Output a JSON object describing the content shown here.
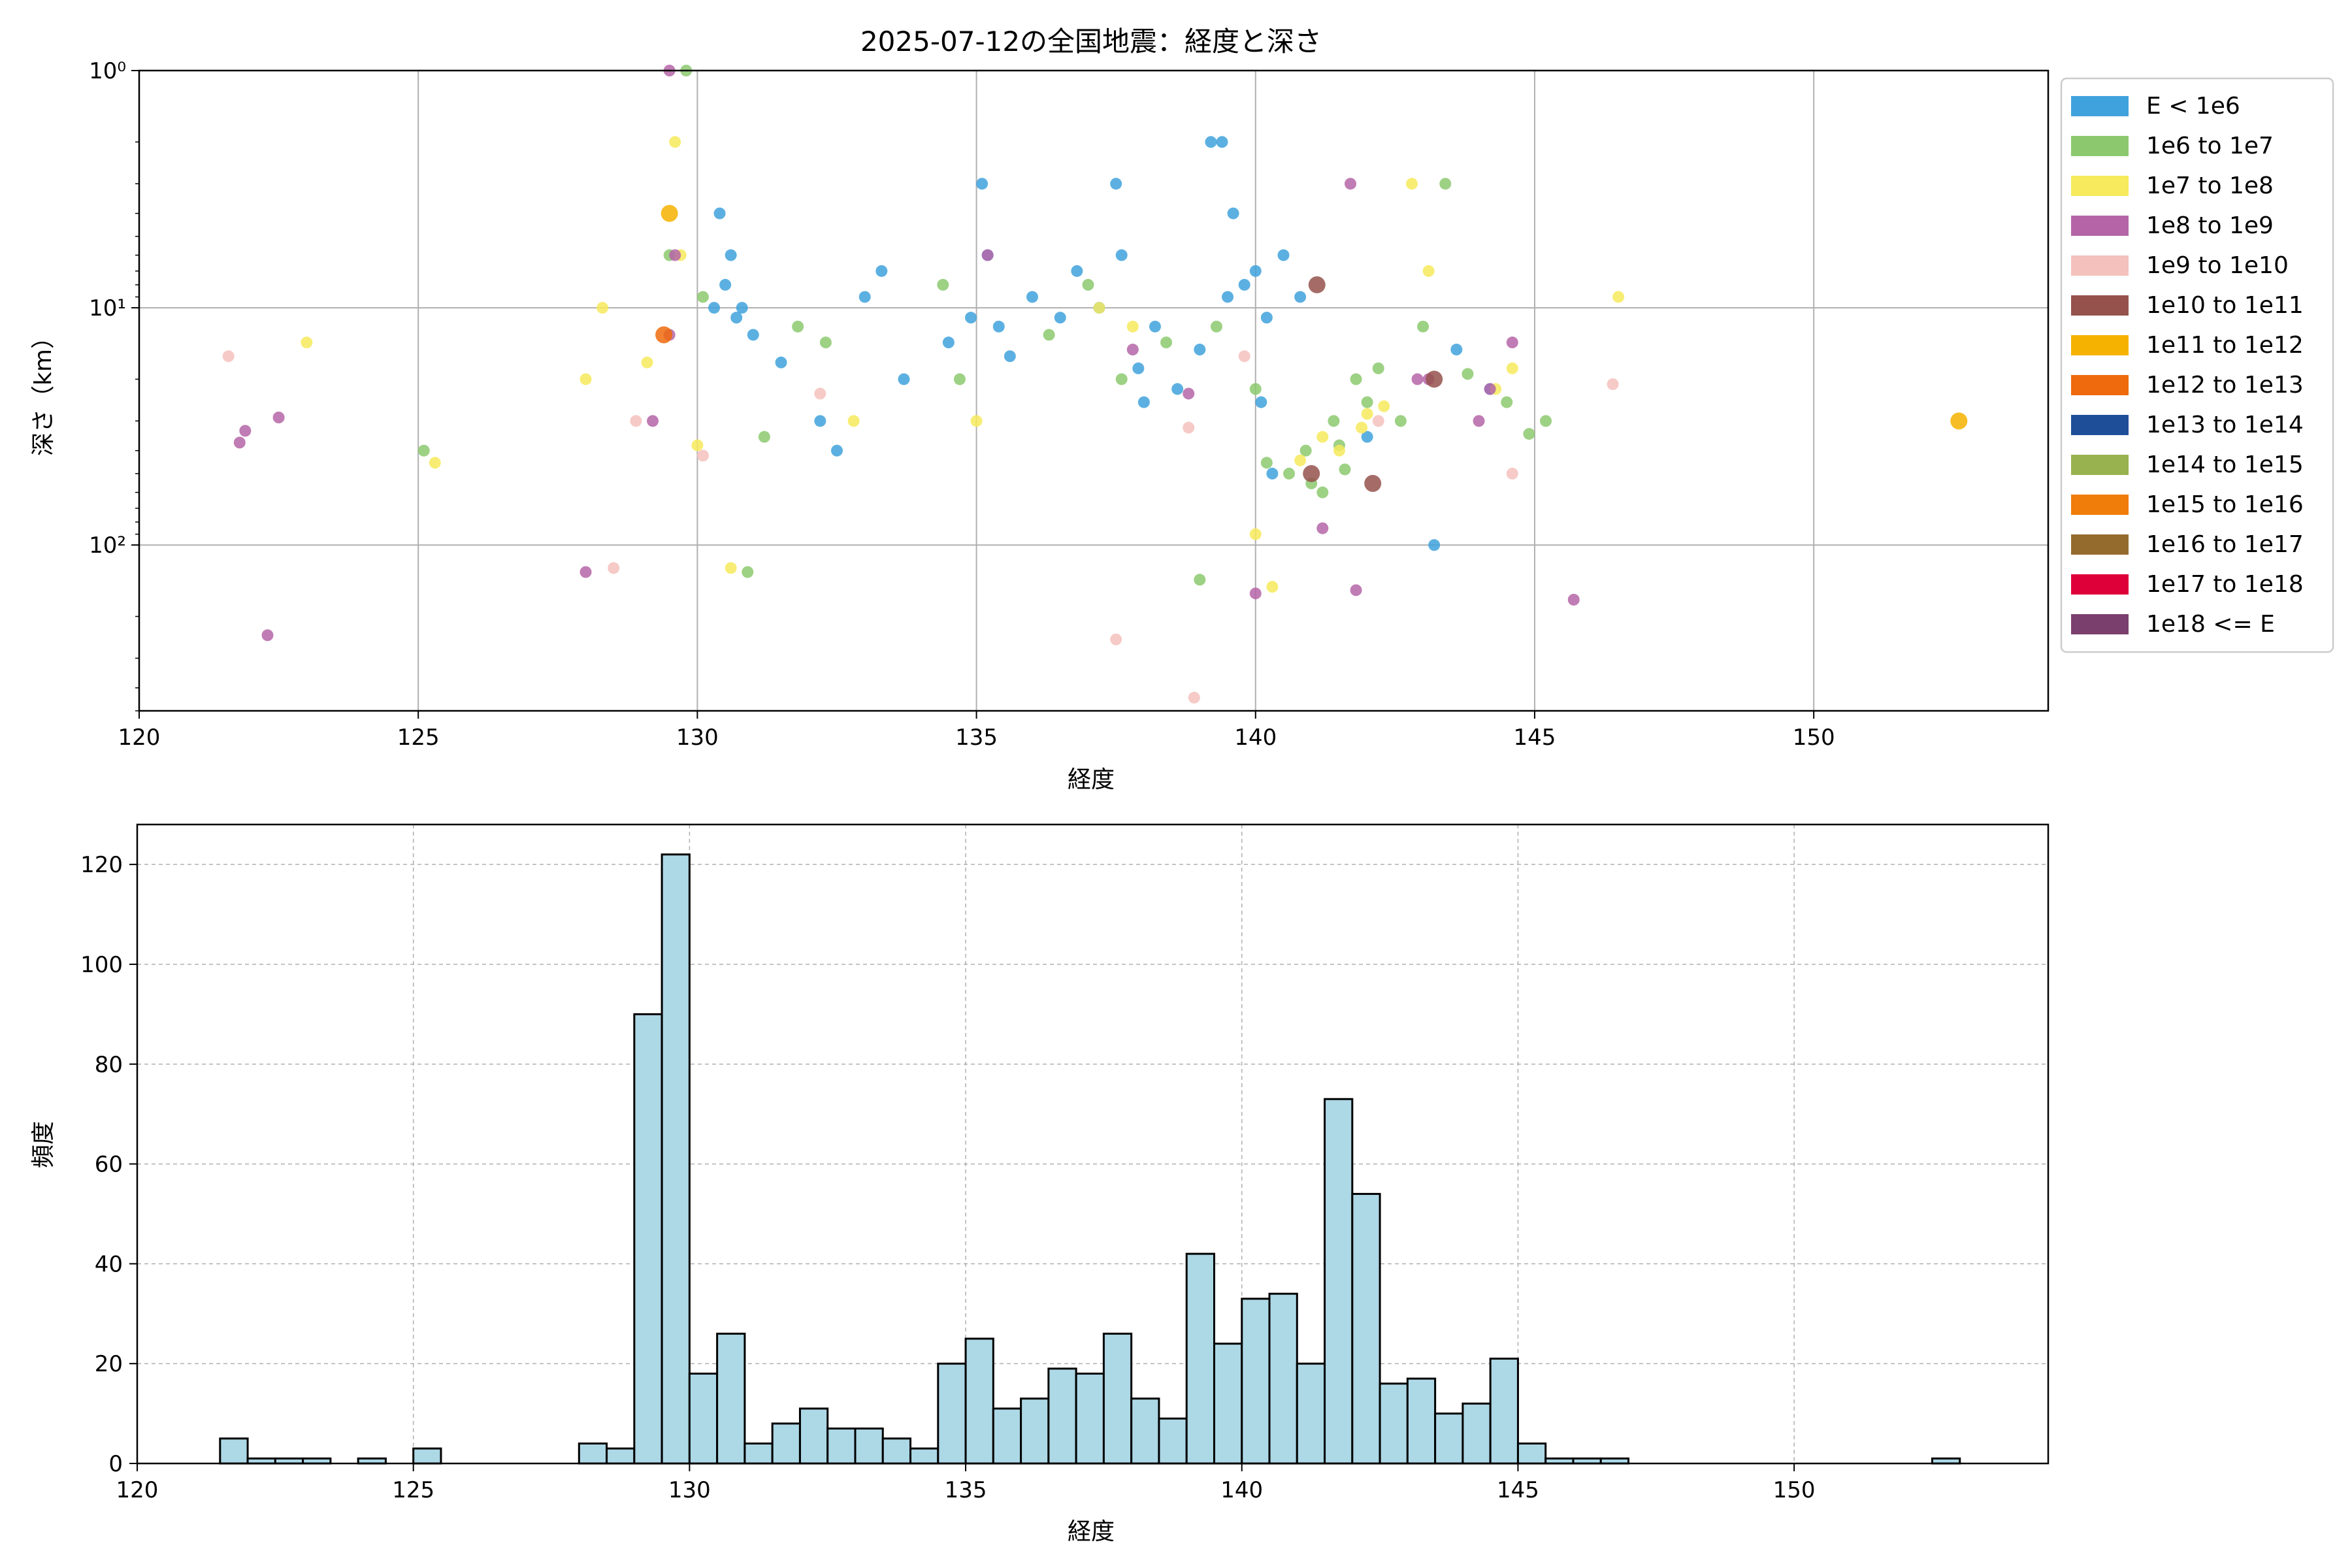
{
  "figure": {
    "title": "2025-07-12の全国地震：経度と深さ"
  },
  "legend": {
    "entries": [
      {
        "label": "E < 1e6",
        "color": "#3fa2dc"
      },
      {
        "label": "1e6 to 1e7",
        "color": "#8cc96e"
      },
      {
        "label": "1e7 to 1e8",
        "color": "#f7ea5c"
      },
      {
        "label": "1e8 to 1e9",
        "color": "#b565a7"
      },
      {
        "label": "1e9 to 1e10",
        "color": "#f4c1bd"
      },
      {
        "label": "1e10 to 1e11",
        "color": "#95524c"
      },
      {
        "label": "1e11 to 1e12",
        "color": "#f6b200"
      },
      {
        "label": "1e12 to 1e13",
        "color": "#ee6a0c"
      },
      {
        "label": "1e13 to 1e14",
        "color": "#1f4e99"
      },
      {
        "label": "1e14 to 1e15",
        "color": "#98b24f"
      },
      {
        "label": "1e15 to 1e16",
        "color": "#f07c0a"
      },
      {
        "label": "1e16 to 1e17",
        "color": "#946b2d"
      },
      {
        "label": "1e17 to 1e18",
        "color": "#de0039"
      },
      {
        "label": "1e18 <= E",
        "color": "#7b3f6e"
      }
    ]
  },
  "chart_data": [
    {
      "type": "scatter",
      "title": "2025-07-12の全国地震：経度と深さ",
      "xlabel": "経度",
      "ylabel": "深さ（km）",
      "xlim": [
        120,
        154.2
      ],
      "ylim": [
        1,
        500
      ],
      "y_scale": "log",
      "y_inverted": true,
      "grid": true,
      "legend_position": "outside-right",
      "x_ticks": [
        120,
        125,
        130,
        135,
        140,
        145,
        150
      ],
      "x_tick_labels": [
        "120",
        "125",
        "130",
        "135",
        "140",
        "145",
        "150"
      ],
      "y_ticks": [
        1,
        10,
        100
      ],
      "y_tick_labels": [
        "10⁰",
        "10¹",
        "10²"
      ],
      "series": [
        {
          "name": "E < 1e6",
          "color": "#3fa2dc",
          "points": [
            [
              130.3,
              10
            ],
            [
              130.5,
              8
            ],
            [
              130.6,
              6
            ],
            [
              130.8,
              10
            ],
            [
              131.0,
              13
            ],
            [
              130.7,
              11
            ],
            [
              130.4,
              4
            ],
            [
              131.5,
              17
            ],
            [
              132.2,
              30
            ],
            [
              132.5,
              40
            ],
            [
              133.0,
              9
            ],
            [
              133.3,
              7
            ],
            [
              133.7,
              20
            ],
            [
              134.5,
              14
            ],
            [
              134.9,
              11
            ],
            [
              135.1,
              3
            ],
            [
              135.2,
              6
            ],
            [
              135.4,
              12
            ],
            [
              135.6,
              16
            ],
            [
              136.0,
              9
            ],
            [
              136.5,
              11
            ],
            [
              136.8,
              7
            ],
            [
              137.2,
              10
            ],
            [
              137.5,
              3
            ],
            [
              137.6,
              6
            ],
            [
              137.9,
              18
            ],
            [
              138.2,
              12
            ],
            [
              138.6,
              22
            ],
            [
              139.0,
              15
            ],
            [
              139.2,
              2
            ],
            [
              139.4,
              2
            ],
            [
              139.5,
              9
            ],
            [
              139.8,
              8
            ],
            [
              140.2,
              11
            ],
            [
              140.5,
              6
            ],
            [
              140.8,
              9
            ],
            [
              140.3,
              50
            ],
            [
              140.1,
              25
            ],
            [
              142.0,
              35
            ],
            [
              143.2,
              100
            ],
            [
              143.6,
              15
            ],
            [
              144.2,
              22
            ],
            [
              138.0,
              25
            ],
            [
              139.6,
              4
            ],
            [
              140.0,
              7
            ]
          ]
        },
        {
          "name": "1e6 to 1e7",
          "color": "#8cc96e",
          "points": [
            [
              125.1,
              40
            ],
            [
              129.5,
              6
            ],
            [
              130.1,
              9
            ],
            [
              130.9,
              130
            ],
            [
              131.2,
              35
            ],
            [
              131.8,
              12
            ],
            [
              132.3,
              14
            ],
            [
              134.4,
              8
            ],
            [
              134.7,
              20
            ],
            [
              136.3,
              13
            ],
            [
              137.0,
              8
            ],
            [
              137.6,
              20
            ],
            [
              138.4,
              14
            ],
            [
              139.0,
              140
            ],
            [
              139.3,
              12
            ],
            [
              140.0,
              22
            ],
            [
              140.2,
              45
            ],
            [
              140.6,
              50
            ],
            [
              140.9,
              40
            ],
            [
              141.2,
              60
            ],
            [
              141.4,
              30
            ],
            [
              141.5,
              38
            ],
            [
              141.8,
              20
            ],
            [
              142.0,
              25
            ],
            [
              142.2,
              18
            ],
            [
              142.6,
              30
            ],
            [
              143.0,
              12
            ],
            [
              143.4,
              3
            ],
            [
              143.8,
              19
            ],
            [
              144.5,
              25
            ],
            [
              144.9,
              34
            ],
            [
              145.2,
              30
            ],
            [
              129.8,
              1
            ],
            [
              141.0,
              55
            ],
            [
              141.6,
              48
            ]
          ]
        },
        {
          "name": "1e7 to 1e8",
          "color": "#f7ea5c",
          "points": [
            [
              123.0,
              14
            ],
            [
              125.3,
              45
            ],
            [
              128.0,
              20
            ],
            [
              128.3,
              10
            ],
            [
              129.1,
              17
            ],
            [
              129.6,
              2
            ],
            [
              129.7,
              6
            ],
            [
              130.0,
              38
            ],
            [
              130.6,
              125
            ],
            [
              132.8,
              30
            ],
            [
              135.0,
              30
            ],
            [
              137.2,
              10
            ],
            [
              137.8,
              12
            ],
            [
              140.0,
              90
            ],
            [
              140.3,
              150
            ],
            [
              140.8,
              44
            ],
            [
              141.2,
              35
            ],
            [
              141.9,
              32
            ],
            [
              142.3,
              26
            ],
            [
              142.8,
              3
            ],
            [
              143.1,
              7
            ],
            [
              144.3,
              22
            ],
            [
              144.6,
              18
            ],
            [
              146.5,
              9
            ],
            [
              141.5,
              40
            ],
            [
              142.0,
              28
            ]
          ]
        },
        {
          "name": "1e8 to 1e9",
          "color": "#b565a7",
          "points": [
            [
              121.8,
              37
            ],
            [
              121.9,
              33
            ],
            [
              122.3,
              240
            ],
            [
              122.5,
              29
            ],
            [
              128.0,
              130
            ],
            [
              129.2,
              30
            ],
            [
              129.5,
              1
            ],
            [
              129.6,
              6
            ],
            [
              129.5,
              13
            ],
            [
              135.2,
              6
            ],
            [
              137.8,
              15
            ],
            [
              138.8,
              23
            ],
            [
              140.0,
              160
            ],
            [
              141.2,
              85
            ],
            [
              141.7,
              3
            ],
            [
              141.8,
              155
            ],
            [
              143.1,
              20
            ],
            [
              144.2,
              22
            ],
            [
              144.6,
              14
            ],
            [
              145.7,
              170
            ],
            [
              142.9,
              20
            ],
            [
              144.0,
              30
            ]
          ]
        },
        {
          "name": "1e9 to 1e10",
          "color": "#f4c1bd",
          "points": [
            [
              121.6,
              16
            ],
            [
              128.5,
              125
            ],
            [
              128.9,
              30
            ],
            [
              130.1,
              42
            ],
            [
              132.2,
              23
            ],
            [
              137.5,
              250
            ],
            [
              138.8,
              32
            ],
            [
              138.9,
              440
            ],
            [
              144.6,
              50
            ],
            [
              146.4,
              21
            ],
            [
              139.8,
              16
            ],
            [
              142.2,
              30
            ]
          ]
        },
        {
          "name": "1e10 to 1e11",
          "color": "#95524c",
          "points": [
            [
              141.1,
              8
            ],
            [
              142.1,
              55
            ],
            [
              141.0,
              50
            ],
            [
              143.2,
              20
            ]
          ]
        },
        {
          "name": "1e11 to 1e12",
          "color": "#f6b200",
          "points": [
            [
              129.5,
              4
            ],
            [
              152.6,
              30
            ]
          ]
        },
        {
          "name": "1e12 to 1e13",
          "color": "#ee6a0c",
          "points": [
            [
              129.4,
              13
            ]
          ]
        }
      ]
    },
    {
      "type": "bar",
      "subtype": "histogram",
      "title": "",
      "xlabel": "経度",
      "ylabel": "頻度",
      "xlim": [
        120,
        154.6
      ],
      "ylim": [
        0,
        128
      ],
      "grid": true,
      "bar_color": "#add8e6",
      "x_ticks": [
        120,
        125,
        130,
        135,
        140,
        145,
        150
      ],
      "x_tick_labels": [
        "120",
        "125",
        "130",
        "135",
        "140",
        "145",
        "150"
      ],
      "y_ticks": [
        0,
        20,
        40,
        60,
        80,
        100,
        120
      ],
      "y_tick_labels": [
        "0",
        "20",
        "40",
        "60",
        "80",
        "100",
        "120"
      ],
      "bin_start": 121.5,
      "bin_width": 0.5,
      "values": [
        5,
        1,
        1,
        1,
        0,
        1,
        0,
        3,
        0,
        0,
        0,
        0,
        0,
        4,
        3,
        90,
        122,
        18,
        26,
        4,
        8,
        11,
        7,
        7,
        5,
        3,
        20,
        25,
        11,
        13,
        19,
        18,
        26,
        13,
        9,
        42,
        24,
        33,
        34,
        20,
        73,
        54,
        16,
        17,
        10,
        12,
        21,
        4,
        1,
        1,
        1,
        0,
        0,
        0,
        0,
        0,
        0,
        0,
        0,
        0,
        0,
        0,
        1
      ]
    }
  ]
}
